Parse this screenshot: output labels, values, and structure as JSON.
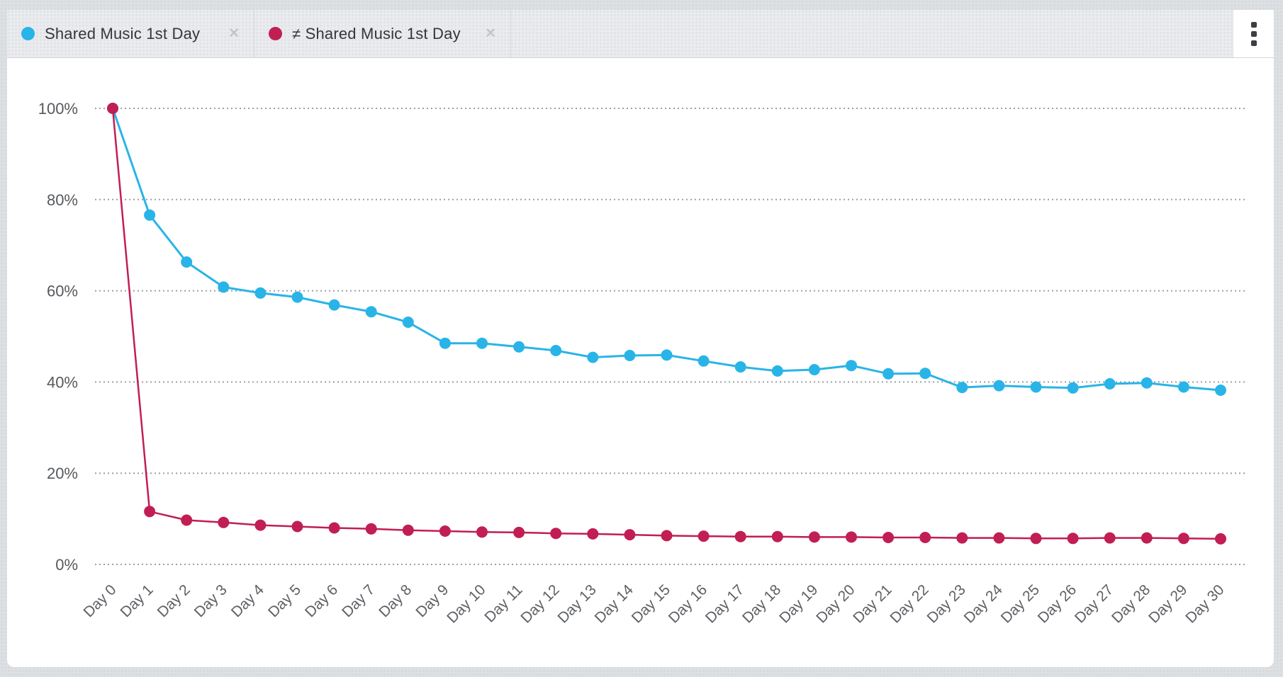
{
  "tabs": [
    {
      "label": "Shared Music 1st Day",
      "color": "#29b4e8",
      "close": "✕"
    },
    {
      "label": "≠ Shared Music 1st Day",
      "color": "#c11e53",
      "close": "✕"
    }
  ],
  "menu": {
    "icon": "kebab-vertical-menu"
  },
  "chart_data": {
    "type": "line",
    "title": "",
    "xlabel": "",
    "ylabel": "",
    "categories": [
      "Day 0",
      "Day 1",
      "Day 2",
      "Day 3",
      "Day 4",
      "Day 5",
      "Day 6",
      "Day 7",
      "Day 8",
      "Day 9",
      "Day 10",
      "Day 11",
      "Day 12",
      "Day 13",
      "Day 14",
      "Day 15",
      "Day 16",
      "Day 17",
      "Day 18",
      "Day 19",
      "Day 20",
      "Day 21",
      "Day 22",
      "Day 23",
      "Day 24",
      "Day 25",
      "Day 26",
      "Day 27",
      "Day 28",
      "Day 29",
      "Day 30"
    ],
    "series": [
      {
        "name": "Shared Music 1st Day",
        "color": "#29b4e8",
        "values": [
          100,
          76.6,
          66.3,
          60.8,
          59.5,
          58.6,
          56.9,
          55.4,
          53.1,
          48.5,
          48.5,
          47.7,
          46.9,
          45.4,
          45.8,
          45.9,
          44.6,
          43.3,
          42.4,
          42.7,
          43.6,
          41.8,
          41.9,
          38.8,
          39.2,
          38.9,
          38.7,
          39.6,
          39.8,
          38.9,
          38.2
        ]
      },
      {
        "name": "≠ Shared Music 1st Day",
        "color": "#c11e53",
        "values": [
          100,
          11.6,
          9.7,
          9.2,
          8.6,
          8.3,
          8.0,
          7.8,
          7.5,
          7.3,
          7.1,
          7.0,
          6.8,
          6.7,
          6.5,
          6.3,
          6.2,
          6.1,
          6.1,
          6.0,
          6.0,
          5.9,
          5.9,
          5.8,
          5.8,
          5.7,
          5.7,
          5.8,
          5.8,
          5.7,
          5.6
        ]
      }
    ],
    "y_ticks": [
      "0%",
      "20%",
      "40%",
      "60%",
      "80%",
      "100%"
    ],
    "ylim": [
      0,
      100
    ],
    "grid": "horizontal-dotted",
    "x_tick_rotation": -45,
    "legend_position": "top-tabs"
  }
}
